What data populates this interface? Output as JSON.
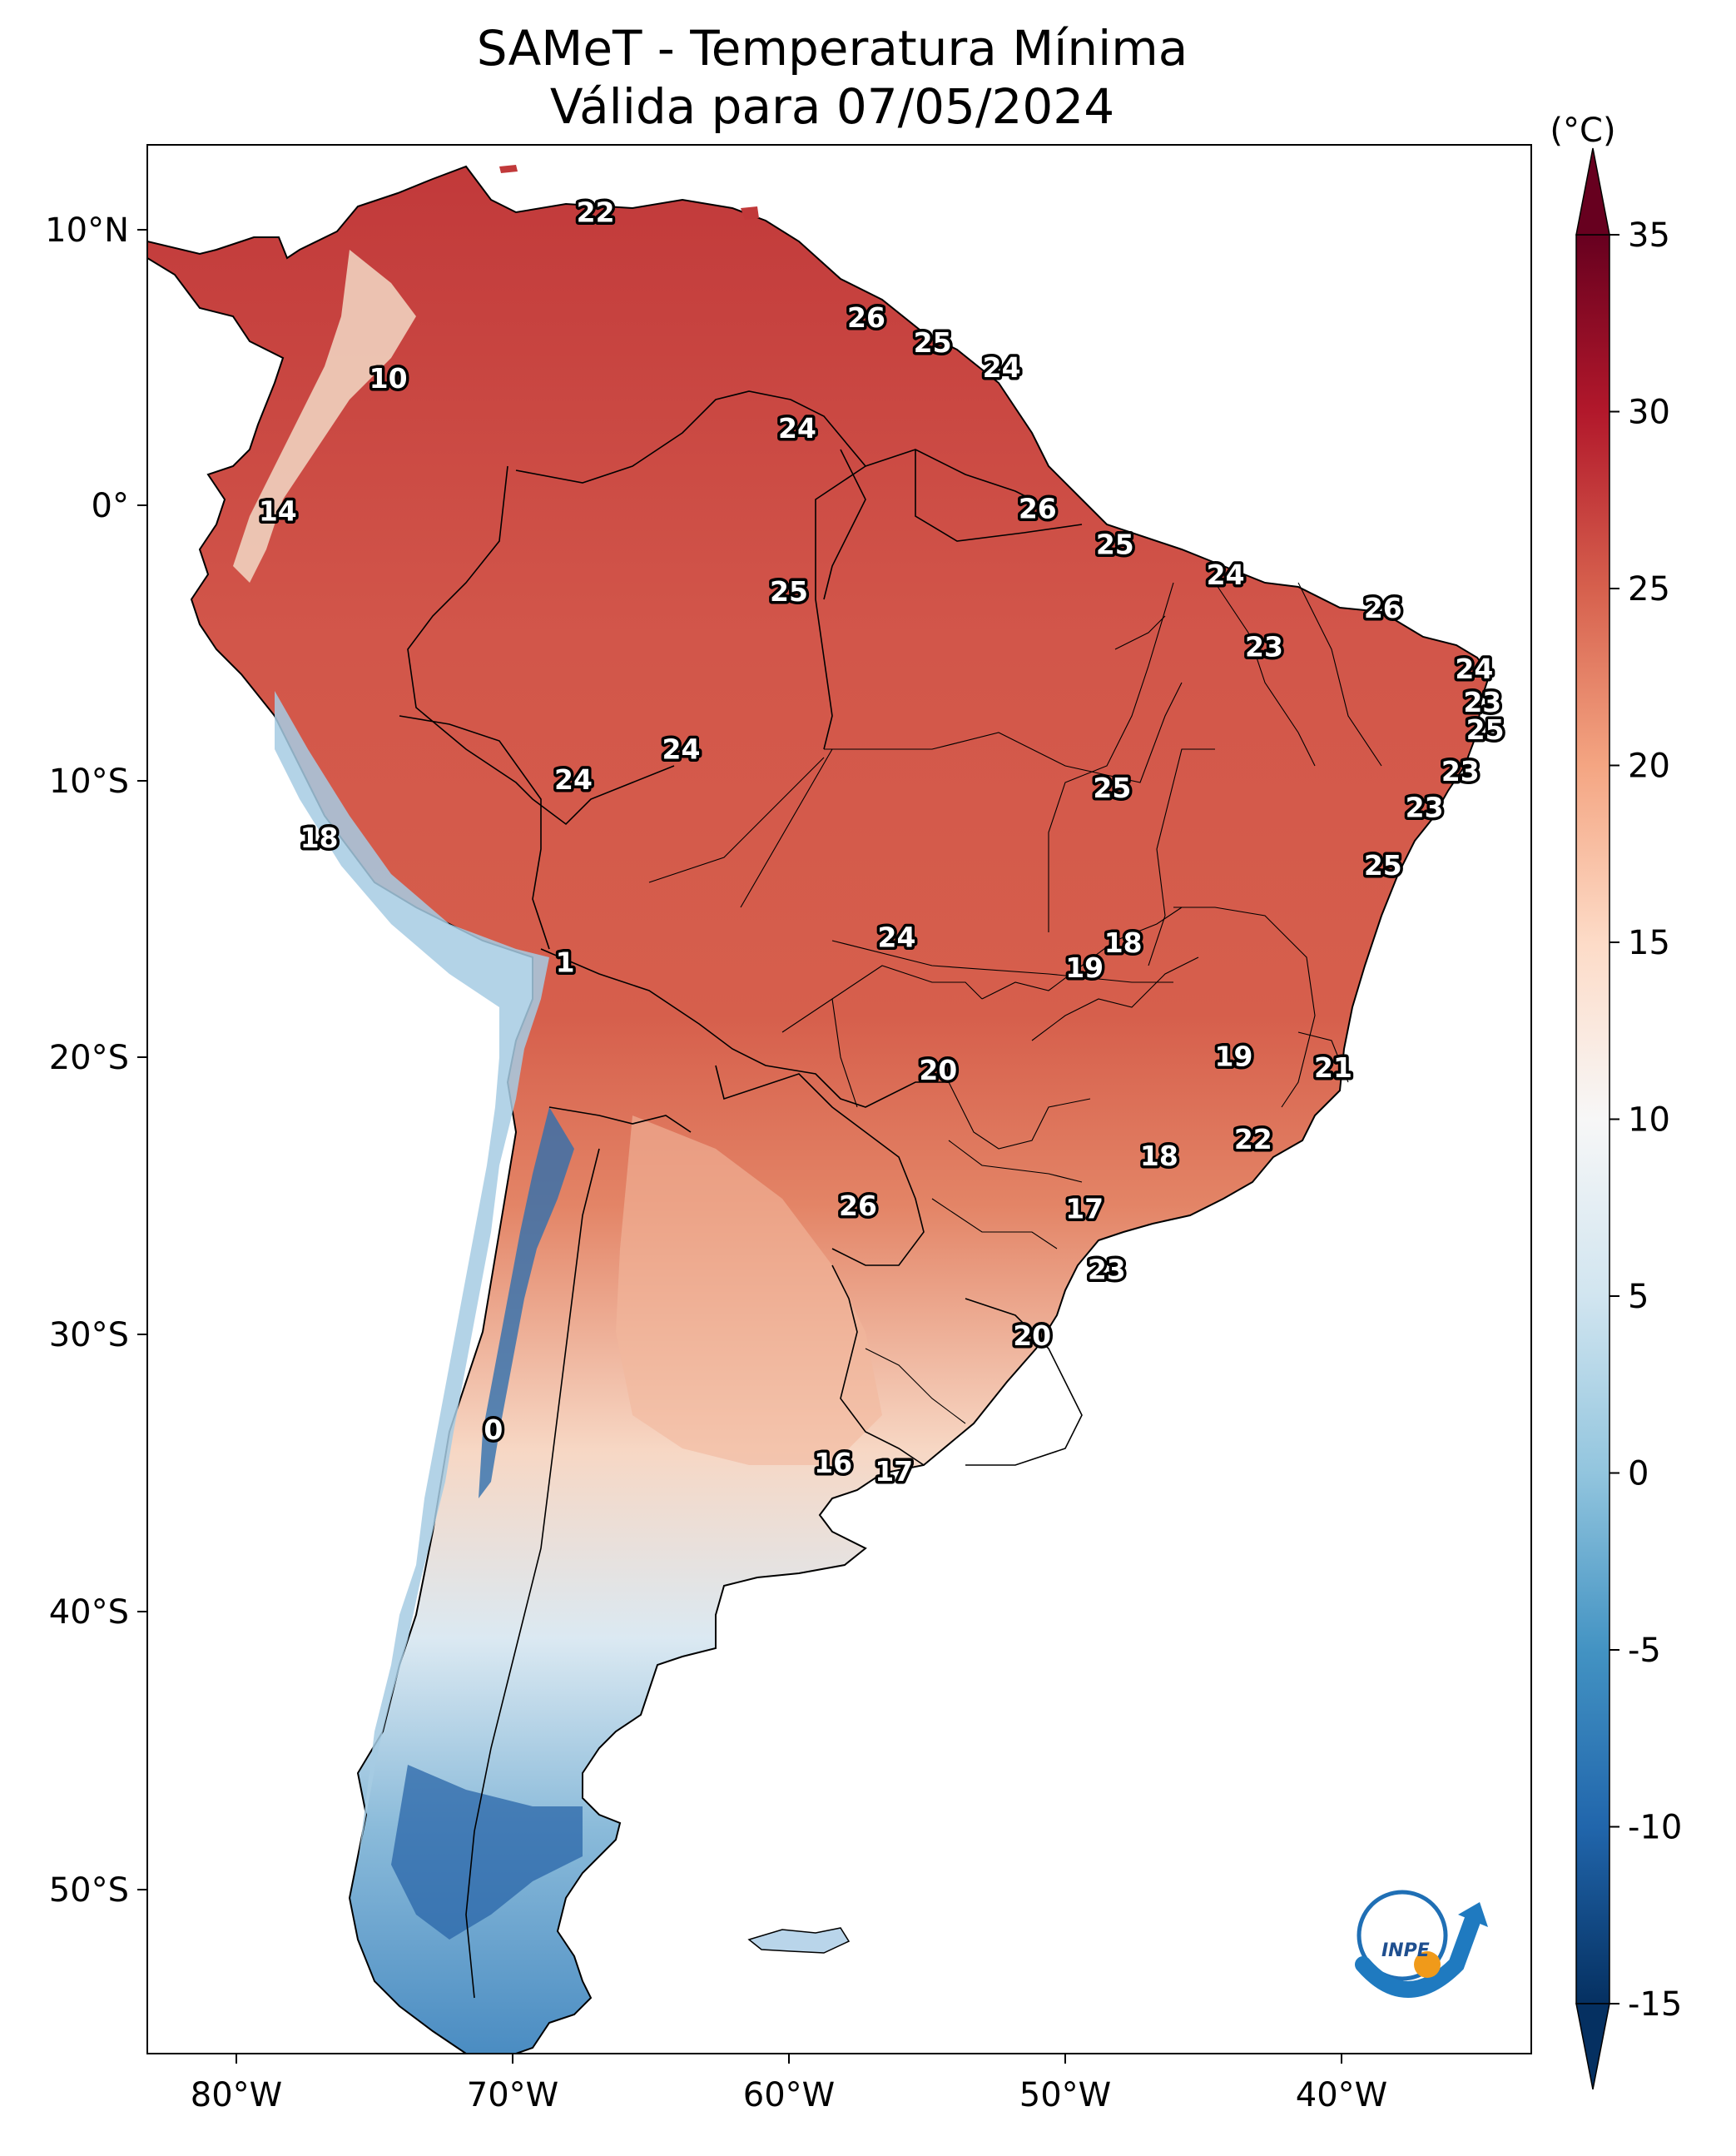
{
  "title_line1": "SAMeT - Temperatura Mínima",
  "title_line2": "Válida para 07/05/2024",
  "colorbar": {
    "unit": "(°C)",
    "min": -15,
    "max": 35,
    "ticks": [
      "35",
      "30",
      "25",
      "20",
      "15",
      "10",
      "5",
      "0",
      "-5",
      "-10",
      "-15"
    ],
    "colors": [
      "#053061",
      "#2166ac",
      "#4393c3",
      "#92c5de",
      "#d1e5f0",
      "#f7f7f7",
      "#fddbc7",
      "#f4a582",
      "#d6604d",
      "#b2182b",
      "#67001f"
    ]
  },
  "axes": {
    "lon_labels": [
      "80°W",
      "70°W",
      "60°W",
      "50°W",
      "40°W"
    ],
    "lat_labels": [
      "10°N",
      "0°",
      "10°S",
      "20°S",
      "30°S",
      "40°S",
      "50°S"
    ]
  },
  "logo": {
    "text": "INPE",
    "icon": "inpe-logo"
  },
  "station_labels": [
    {
      "v": "22",
      "lon": -67.0,
      "lat": 10.6
    },
    {
      "v": "10",
      "lon": -74.5,
      "lat": 4.6
    },
    {
      "v": "26",
      "lon": -57.2,
      "lat": 6.8
    },
    {
      "v": "25",
      "lon": -54.8,
      "lat": 5.9
    },
    {
      "v": "24",
      "lon": -52.3,
      "lat": 5.0
    },
    {
      "v": "24",
      "lon": -59.7,
      "lat": 2.8
    },
    {
      "v": "14",
      "lon": -78.5,
      "lat": -0.2
    },
    {
      "v": "26",
      "lon": -51.0,
      "lat": -0.1
    },
    {
      "v": "25",
      "lon": -48.2,
      "lat": -1.4
    },
    {
      "v": "24",
      "lon": -44.2,
      "lat": -2.5
    },
    {
      "v": "25",
      "lon": -60.0,
      "lat": -3.1
    },
    {
      "v": "26",
      "lon": -38.5,
      "lat": -3.7
    },
    {
      "v": "23",
      "lon": -42.8,
      "lat": -5.1
    },
    {
      "v": "24",
      "lon": -35.2,
      "lat": -5.9
    },
    {
      "v": "23",
      "lon": -34.9,
      "lat": -7.1
    },
    {
      "v": "25",
      "lon": -34.8,
      "lat": -8.1
    },
    {
      "v": "24",
      "lon": -63.9,
      "lat": -8.8
    },
    {
      "v": "24",
      "lon": -67.8,
      "lat": -9.9
    },
    {
      "v": "25",
      "lon": -48.3,
      "lat": -10.2
    },
    {
      "v": "23",
      "lon": -35.7,
      "lat": -9.6
    },
    {
      "v": "23",
      "lon": -37.0,
      "lat": -10.9
    },
    {
      "v": "18",
      "lon": -77.0,
      "lat": -12.0
    },
    {
      "v": "25",
      "lon": -38.5,
      "lat": -13.0
    },
    {
      "v": "24",
      "lon": -56.1,
      "lat": -15.6
    },
    {
      "v": "18",
      "lon": -47.9,
      "lat": -15.8
    },
    {
      "v": "19",
      "lon": -49.3,
      "lat": -16.7
    },
    {
      "v": "1",
      "lon": -68.1,
      "lat": -16.5
    },
    {
      "v": "19",
      "lon": -43.9,
      "lat": -19.9
    },
    {
      "v": "21",
      "lon": -40.3,
      "lat": -20.3
    },
    {
      "v": "20",
      "lon": -54.6,
      "lat": -20.4
    },
    {
      "v": "22",
      "lon": -43.2,
      "lat": -22.9
    },
    {
      "v": "18",
      "lon": -46.6,
      "lat": -23.5
    },
    {
      "v": "26",
      "lon": -57.5,
      "lat": -25.3
    },
    {
      "v": "17",
      "lon": -49.3,
      "lat": -25.4
    },
    {
      "v": "23",
      "lon": -48.5,
      "lat": -27.6
    },
    {
      "v": "20",
      "lon": -51.2,
      "lat": -30.0
    },
    {
      "v": "0",
      "lon": -70.7,
      "lat": -33.4
    },
    {
      "v": "16",
      "lon": -58.4,
      "lat": -34.6
    },
    {
      "v": "17",
      "lon": -56.2,
      "lat": -34.9
    }
  ]
}
